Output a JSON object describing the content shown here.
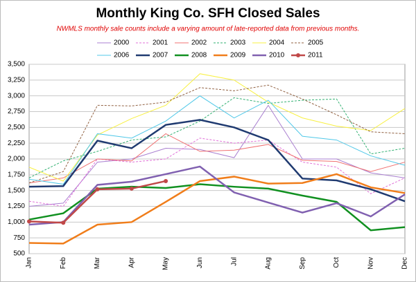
{
  "chart_data": {
    "type": "line",
    "title": "Monthly King Co. SFH Closed Sales",
    "subtitle": "NWMLS monthly sale counts include a varying amount of late-reported data from previous months.",
    "categories": [
      "Jan",
      "Feb",
      "Mar",
      "Apr",
      "May",
      "Jun",
      "Jul",
      "Aug",
      "Sep",
      "Oct",
      "Nov",
      "Dec"
    ],
    "ylim": [
      500,
      3500
    ],
    "yticks": [
      500,
      {
        "value": 750,
        "label": "750"
      },
      {
        "value": 1000,
        "label": "1,000"
      },
      {
        "value": 1250,
        "label": "1,250"
      },
      {
        "value": 1500,
        "label": "1,500"
      },
      {
        "value": 1750,
        "label": "1,750"
      },
      {
        "value": 2000,
        "label": "2,000"
      },
      {
        "value": 2250,
        "label": "2,250"
      },
      {
        "value": 2500,
        "label": "2,500"
      },
      {
        "value": 2750,
        "label": "2,750"
      },
      {
        "value": 3000,
        "label": "3,000"
      },
      {
        "value": 3250,
        "label": "3,250"
      },
      {
        "value": 3500,
        "label": "3,500"
      }
    ],
    "grid": true,
    "legend": "top",
    "series": [
      {
        "name": "2000",
        "color": "#a97fd0",
        "style": "solid",
        "weight": "thin",
        "values": [
          1250,
          1300,
          1950,
          2000,
          2170,
          2150,
          2020,
          2850,
          2000,
          2000,
          1780,
          1700
        ]
      },
      {
        "name": "2001",
        "color": "#e070d8",
        "style": "dashed",
        "weight": "thin",
        "values": [
          1330,
          1250,
          2000,
          1950,
          2000,
          2330,
          2250,
          2300,
          1950,
          1870,
          1450,
          1700
        ]
      },
      {
        "name": "2002",
        "color": "#f07070",
        "style": "solid",
        "weight": "thin",
        "values": [
          1620,
          1700,
          2000,
          1970,
          2400,
          2120,
          2140,
          2230,
          1980,
          1960,
          1800,
          1950
        ]
      },
      {
        "name": "2003",
        "color": "#30b070",
        "style": "dashed",
        "weight": "thin",
        "values": [
          1700,
          1970,
          2120,
          2300,
          2350,
          2600,
          2970,
          2880,
          2930,
          2950,
          2080,
          2170
        ]
      },
      {
        "name": "2004",
        "color": "#f8f040",
        "style": "solid",
        "weight": "thin",
        "values": [
          1870,
          1650,
          2380,
          2640,
          2850,
          3350,
          3250,
          2900,
          2650,
          2520,
          2450,
          2800
        ]
      },
      {
        "name": "2005",
        "color": "#906040",
        "style": "dashed",
        "weight": "thin",
        "values": [
          1620,
          1800,
          2850,
          2840,
          2900,
          3130,
          3080,
          3170,
          2950,
          2700,
          2430,
          2400
        ]
      },
      {
        "name": "2006",
        "color": "#50c8e8",
        "style": "solid",
        "weight": "thin",
        "values": [
          1680,
          1600,
          2400,
          2330,
          2600,
          3000,
          2650,
          2930,
          2360,
          2300,
          2050,
          1900
        ]
      },
      {
        "name": "2007",
        "color": "#1f3a70",
        "style": "solid",
        "weight": "thick",
        "values": [
          1560,
          1570,
          2290,
          2170,
          2540,
          2620,
          2500,
          2300,
          1690,
          1660,
          1520,
          1330
        ]
      },
      {
        "name": "2008",
        "color": "#109020",
        "style": "solid",
        "weight": "thick",
        "values": [
          1040,
          1140,
          1530,
          1560,
          1540,
          1600,
          1560,
          1530,
          1420,
          1320,
          870,
          920
        ]
      },
      {
        "name": "2009",
        "color": "#f07d1a",
        "style": "solid",
        "weight": "thick",
        "values": [
          670,
          660,
          960,
          1000,
          1320,
          1650,
          1720,
          1610,
          1620,
          1760,
          1550,
          1460
        ]
      },
      {
        "name": "2010",
        "color": "#8060b0",
        "style": "solid",
        "weight": "thick",
        "values": [
          960,
          1000,
          1590,
          1640,
          1760,
          1880,
          1470,
          1310,
          1150,
          1300,
          1090,
          1440
        ]
      },
      {
        "name": "2011",
        "color": "#c04848",
        "style": "solid",
        "weight": "thick",
        "marker": "circle",
        "values": [
          1010,
          990,
          1520,
          1530,
          1650,
          null,
          null,
          null,
          null,
          null,
          null,
          null
        ]
      }
    ]
  }
}
